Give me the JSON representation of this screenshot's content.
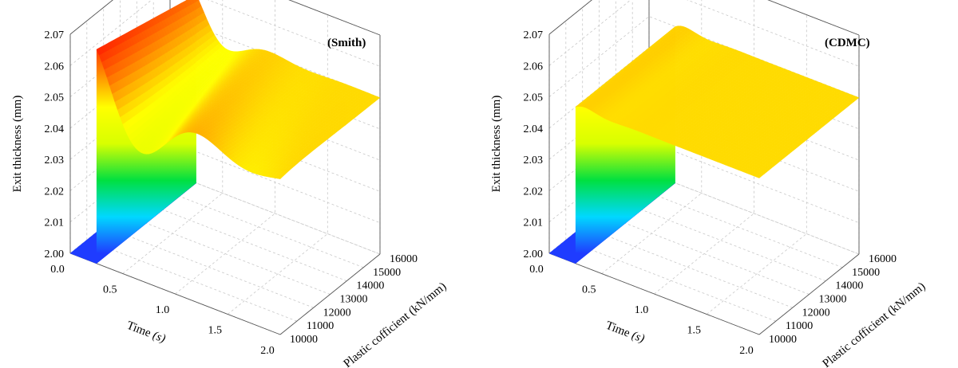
{
  "chart_data": [
    {
      "type": "surface",
      "label": "(Smith)",
      "xlabel": "Time",
      "xlabel_unit": "(s)",
      "ylabel": "Plastic cofficient (kN/mm)",
      "zlabel": "Exit thickness (mm)",
      "xlim": [
        0.0,
        2.0
      ],
      "ylim": [
        10000,
        16000
      ],
      "zlim": [
        2.0,
        2.07
      ],
      "x_ticks": [
        "0.0",
        "0.5",
        "1.0",
        "1.5",
        "2.0"
      ],
      "y_ticks": [
        "10000",
        "11000",
        "12000",
        "13000",
        "14000",
        "15000",
        "16000"
      ],
      "z_ticks": [
        "2.00",
        "2.01",
        "2.02",
        "2.03",
        "2.04",
        "2.05",
        "2.06",
        "2.07"
      ],
      "step_time": 0.25,
      "initial_thickness": 2.0,
      "final_thickness": 2.05,
      "overshoot_peak": 2.069,
      "colormap": [
        "#1f3cff",
        "#00d8ff",
        "#00e040",
        "#d8ff00",
        "#ffff00",
        "#ff8000",
        "#ff1000"
      ]
    },
    {
      "type": "surface",
      "label": "(CDMC)",
      "xlabel": "Time",
      "xlabel_unit": "(s)",
      "ylabel": "Plastic cofficient (kN/mm)",
      "zlabel": "Exit thickness (mm)",
      "xlim": [
        0.0,
        2.0
      ],
      "ylim": [
        10000,
        16000
      ],
      "zlim": [
        2.0,
        2.07
      ],
      "x_ticks": [
        "0.0",
        "0.5",
        "1.0",
        "1.5",
        "2.0"
      ],
      "y_ticks": [
        "10000",
        "11000",
        "12000",
        "13000",
        "14000",
        "15000",
        "16000"
      ],
      "z_ticks": [
        "2.00",
        "2.01",
        "2.02",
        "2.03",
        "2.04",
        "2.05",
        "2.06",
        "2.07"
      ],
      "step_time": 0.25,
      "initial_thickness": 2.0,
      "final_thickness": 2.05,
      "overshoot_peak": 2.052,
      "colormap": [
        "#1f3cff",
        "#00d8ff",
        "#00e040",
        "#d8ff00",
        "#ffff00",
        "#ff8000",
        "#ff1000"
      ]
    }
  ]
}
